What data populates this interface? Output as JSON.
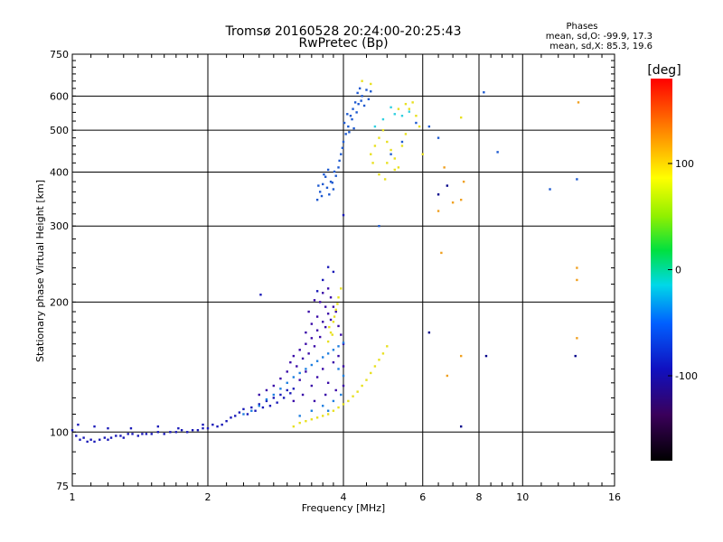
{
  "header": {
    "title_line1": "Tromsø 20160528 20:24:00-20:25:43",
    "title_line2": "RwPretec (Bp)",
    "phases_title": "Phases",
    "phases_o": "mean, sd,O: -99.9, 17.3",
    "phases_x": "mean, sd,X:  85.3, 19.6"
  },
  "chart_data": {
    "type": "scatter",
    "xlabel": "Frequency [MHz]",
    "ylabel": "Stationary phase Virtual Height [km]",
    "x_scale": "log",
    "y_scale": "log",
    "xlim": [
      1,
      16
    ],
    "ylim": [
      75,
      750
    ],
    "grid": true,
    "x_ticks": [
      1,
      2,
      4,
      6,
      8,
      10,
      16
    ],
    "x_tick_labels": [
      "1",
      "2",
      "4",
      "6",
      "8",
      "10",
      "16"
    ],
    "y_ticks": [
      75,
      100,
      200,
      300,
      400,
      500,
      600,
      750
    ],
    "y_tick_labels": [
      "75",
      "100",
      "200",
      "300",
      "400",
      "500",
      "600",
      "750"
    ],
    "colorbar": {
      "label": "[deg]",
      "range": [
        -180,
        180
      ],
      "ticks": [
        100,
        0,
        -100
      ],
      "tick_labels": [
        "100",
        "0",
        "-100"
      ]
    },
    "series": [
      {
        "name": "",
        "color": "#1a1ab8",
        "points": [
          [
            1.0,
            101
          ],
          [
            1.02,
            98
          ],
          [
            1.04,
            96
          ],
          [
            1.06,
            97
          ],
          [
            1.08,
            95
          ],
          [
            1.1,
            96
          ],
          [
            1.12,
            95
          ],
          [
            1.15,
            96
          ],
          [
            1.18,
            97
          ],
          [
            1.2,
            96
          ],
          [
            1.22,
            97
          ],
          [
            1.25,
            98
          ],
          [
            1.28,
            98
          ],
          [
            1.3,
            97
          ],
          [
            1.33,
            99
          ],
          [
            1.36,
            99
          ],
          [
            1.4,
            98
          ],
          [
            1.43,
            99
          ],
          [
            1.46,
            99
          ],
          [
            1.5,
            99
          ],
          [
            1.55,
            100
          ],
          [
            1.6,
            99
          ],
          [
            1.65,
            100
          ],
          [
            1.7,
            100
          ],
          [
            1.75,
            101
          ],
          [
            1.8,
            100
          ],
          [
            1.85,
            101
          ],
          [
            1.9,
            101
          ],
          [
            1.95,
            102
          ],
          [
            2.0,
            102
          ],
          [
            1.03,
            104
          ],
          [
            1.12,
            103
          ],
          [
            1.2,
            102
          ],
          [
            1.35,
            102
          ],
          [
            1.55,
            103
          ],
          [
            1.72,
            102
          ],
          [
            1.95,
            104
          ],
          [
            2.05,
            104
          ],
          [
            2.1,
            103
          ],
          [
            2.15,
            104
          ],
          [
            2.2,
            106
          ],
          [
            2.25,
            108
          ],
          [
            2.3,
            109
          ],
          [
            2.35,
            111
          ],
          [
            2.4,
            113
          ],
          [
            2.45,
            110
          ],
          [
            2.5,
            114
          ],
          [
            2.55,
            112
          ],
          [
            2.6,
            116
          ],
          [
            2.65,
            114
          ],
          [
            2.7,
            118
          ],
          [
            2.75,
            115
          ],
          [
            2.8,
            120
          ],
          [
            2.85,
            117
          ],
          [
            2.9,
            122
          ],
          [
            2.95,
            120
          ],
          [
            3.0,
            125
          ],
          [
            3.05,
            123
          ],
          [
            3.1,
            126
          ],
          [
            2.62,
            208
          ],
          [
            3.5,
            212
          ],
          [
            3.6,
            225
          ],
          [
            3.7,
            241
          ],
          [
            3.8,
            235
          ],
          [
            4.0,
            318
          ]
        ]
      },
      {
        "name": "",
        "color": "#3a0aa8",
        "points": [
          [
            2.8,
            128
          ],
          [
            2.9,
            133
          ],
          [
            3.0,
            138
          ],
          [
            3.05,
            145
          ],
          [
            3.1,
            150
          ],
          [
            3.15,
            142
          ],
          [
            3.2,
            155
          ],
          [
            3.25,
            148
          ],
          [
            3.3,
            160
          ],
          [
            3.35,
            152
          ],
          [
            3.4,
            165
          ],
          [
            3.45,
            158
          ],
          [
            3.5,
            172
          ],
          [
            3.55,
            166
          ],
          [
            3.6,
            180
          ],
          [
            3.65,
            175
          ],
          [
            3.7,
            188
          ],
          [
            3.75,
            182
          ],
          [
            3.8,
            195
          ],
          [
            3.85,
            190
          ],
          [
            3.9,
            176
          ],
          [
            3.95,
            168
          ],
          [
            4.0,
            160
          ],
          [
            3.2,
            132
          ],
          [
            3.3,
            138
          ],
          [
            3.4,
            128
          ],
          [
            3.5,
            134
          ],
          [
            3.6,
            140
          ],
          [
            3.7,
            130
          ],
          [
            3.8,
            145
          ],
          [
            3.9,
            150
          ],
          [
            4.0,
            142
          ],
          [
            2.6,
            122
          ],
          [
            2.7,
            125
          ],
          [
            3.1,
            118
          ],
          [
            3.25,
            122
          ],
          [
            3.45,
            118
          ],
          [
            3.65,
            122
          ],
          [
            3.85,
            125
          ],
          [
            4.0,
            128
          ],
          [
            3.55,
            200
          ],
          [
            3.6,
            210
          ],
          [
            3.65,
            195
          ],
          [
            3.5,
            185
          ],
          [
            3.4,
            178
          ],
          [
            3.3,
            170
          ],
          [
            3.35,
            190
          ],
          [
            3.45,
            202
          ],
          [
            3.75,
            205
          ],
          [
            3.7,
            215
          ]
        ]
      },
      {
        "name": "",
        "color": "#1f7fe0",
        "points": [
          [
            2.6,
            115
          ],
          [
            2.7,
            119
          ],
          [
            2.8,
            122
          ],
          [
            2.9,
            126
          ],
          [
            3.0,
            130
          ],
          [
            3.1,
            134
          ],
          [
            3.2,
            137
          ],
          [
            3.3,
            140
          ],
          [
            3.4,
            143
          ],
          [
            3.5,
            146
          ],
          [
            3.6,
            149
          ],
          [
            3.7,
            152
          ],
          [
            3.8,
            155
          ],
          [
            3.9,
            158
          ],
          [
            4.0,
            161
          ],
          [
            2.4,
            110
          ],
          [
            2.5,
            112
          ],
          [
            3.2,
            109
          ],
          [
            3.4,
            112
          ],
          [
            3.6,
            115
          ],
          [
            3.8,
            118
          ],
          [
            3.95,
            122
          ],
          [
            4.0,
            135
          ],
          [
            3.9,
            140
          ],
          [
            3.7,
            112
          ]
        ]
      },
      {
        "name": "",
        "color": "#1e5ad0",
        "points": [
          [
            3.5,
            345
          ],
          [
            3.55,
            360
          ],
          [
            3.6,
            375
          ],
          [
            3.65,
            390
          ],
          [
            3.7,
            405
          ],
          [
            3.75,
            380
          ],
          [
            3.8,
            365
          ],
          [
            3.85,
            392
          ],
          [
            3.9,
            410
          ],
          [
            3.95,
            440
          ],
          [
            4.0,
            470
          ],
          [
            4.05,
            490
          ],
          [
            4.1,
            510
          ],
          [
            4.15,
            540
          ],
          [
            4.2,
            560
          ],
          [
            4.25,
            580
          ],
          [
            4.3,
            610
          ],
          [
            4.35,
            625
          ],
          [
            4.4,
            600
          ],
          [
            4.45,
            570
          ],
          [
            4.5,
            620
          ],
          [
            4.55,
            590
          ],
          [
            4.6,
            615
          ],
          [
            3.52,
            372
          ],
          [
            3.58,
            352
          ],
          [
            3.62,
            395
          ],
          [
            3.68,
            368
          ],
          [
            3.72,
            355
          ],
          [
            3.78,
            378
          ],
          [
            3.82,
            401
          ],
          [
            3.92,
            425
          ],
          [
            3.98,
            455
          ],
          [
            4.02,
            520
          ],
          [
            4.08,
            545
          ],
          [
            4.12,
            495
          ],
          [
            4.18,
            530
          ],
          [
            4.22,
            505
          ],
          [
            4.28,
            550
          ],
          [
            4.32,
            575
          ],
          [
            4.38,
            585
          ],
          [
            4.8,
            300
          ],
          [
            5.1,
            440
          ],
          [
            5.4,
            470
          ],
          [
            5.8,
            520
          ],
          [
            6.2,
            510
          ],
          [
            6.5,
            480
          ],
          [
            8.2,
            612
          ],
          [
            8.8,
            445
          ],
          [
            11.5,
            365
          ],
          [
            13.2,
            385
          ]
        ]
      },
      {
        "name": "",
        "color": "#e8e020",
        "points": [
          [
            3.1,
            103
          ],
          [
            3.2,
            105
          ],
          [
            3.3,
            106
          ],
          [
            3.4,
            107
          ],
          [
            3.5,
            108
          ],
          [
            3.6,
            109
          ],
          [
            3.7,
            110
          ],
          [
            3.8,
            112
          ],
          [
            3.9,
            114
          ],
          [
            4.0,
            116
          ],
          [
            4.1,
            118
          ],
          [
            4.2,
            121
          ],
          [
            4.3,
            124
          ],
          [
            4.4,
            128
          ],
          [
            4.5,
            132
          ],
          [
            4.6,
            137
          ],
          [
            4.7,
            142
          ],
          [
            4.8,
            147
          ],
          [
            4.9,
            152
          ],
          [
            5.0,
            158
          ],
          [
            3.7,
            162
          ],
          [
            3.75,
            170
          ],
          [
            3.8,
            180
          ],
          [
            3.85,
            192
          ],
          [
            3.9,
            205
          ],
          [
            3.95,
            215
          ],
          [
            3.72,
            175
          ],
          [
            3.82,
            185
          ],
          [
            3.88,
            198
          ],
          [
            3.78,
            168
          ],
          [
            4.6,
            440
          ],
          [
            4.7,
            460
          ],
          [
            4.8,
            480
          ],
          [
            4.9,
            500
          ],
          [
            5.0,
            470
          ],
          [
            5.1,
            450
          ],
          [
            5.2,
            430
          ],
          [
            5.3,
            410
          ],
          [
            5.4,
            460
          ],
          [
            5.5,
            490
          ],
          [
            5.6,
            560
          ],
          [
            5.7,
            580
          ],
          [
            5.8,
            540
          ],
          [
            5.9,
            510
          ],
          [
            6.0,
            440
          ],
          [
            4.8,
            395
          ],
          [
            5.0,
            420
          ],
          [
            5.2,
            405
          ],
          [
            4.65,
            420
          ],
          [
            4.95,
            385
          ],
          [
            4.4,
            650
          ],
          [
            4.6,
            640
          ],
          [
            5.3,
            560
          ],
          [
            5.5,
            575
          ],
          [
            7.3,
            535
          ]
        ]
      },
      {
        "name": "",
        "color": "#f0a020",
        "points": [
          [
            6.5,
            325
          ],
          [
            7.0,
            340
          ],
          [
            7.3,
            345
          ],
          [
            6.6,
            260
          ],
          [
            7.4,
            380
          ],
          [
            6.7,
            410
          ],
          [
            13.2,
            240
          ],
          [
            13.2,
            225
          ],
          [
            13.3,
            580
          ],
          [
            13.2,
            165
          ],
          [
            7.3,
            150
          ],
          [
            6.8,
            135
          ]
        ]
      },
      {
        "name": "",
        "color": "#30d0e0",
        "points": [
          [
            5.2,
            545
          ],
          [
            5.6,
            552
          ],
          [
            4.7,
            510
          ],
          [
            4.9,
            530
          ],
          [
            5.1,
            565
          ],
          [
            5.4,
            540
          ]
        ]
      },
      {
        "name": "",
        "color": "#00008a",
        "points": [
          [
            6.2,
            170
          ],
          [
            7.3,
            103
          ],
          [
            8.3,
            150
          ],
          [
            13.1,
            150
          ],
          [
            6.5,
            355
          ],
          [
            6.8,
            372
          ]
        ]
      }
    ]
  }
}
